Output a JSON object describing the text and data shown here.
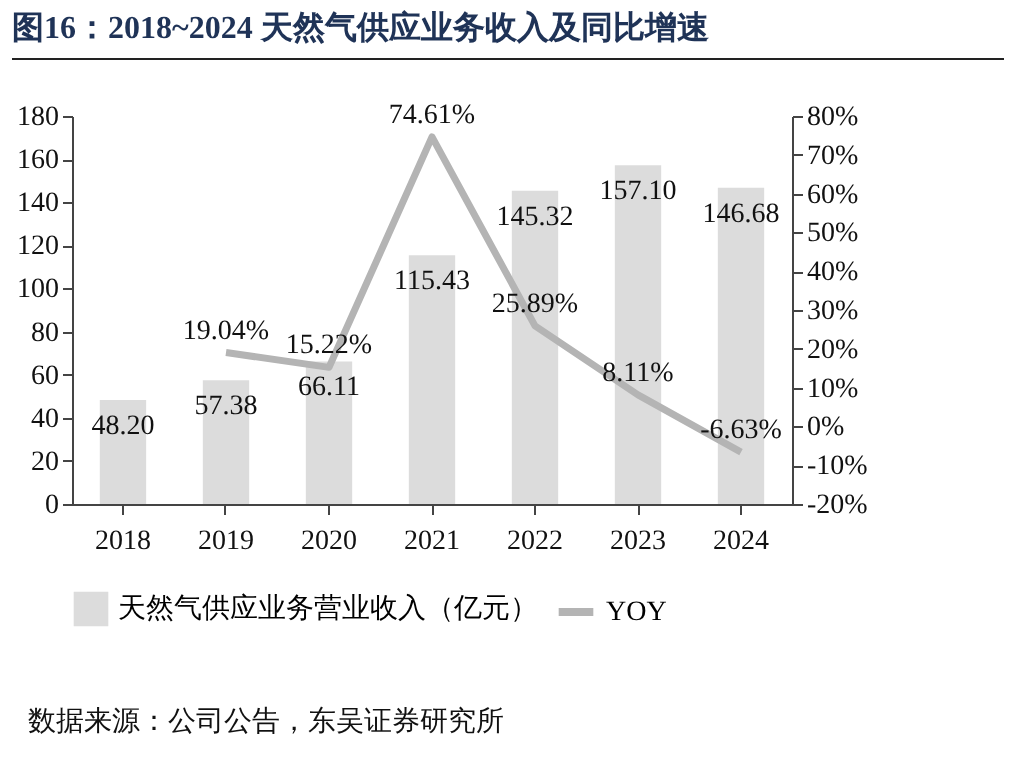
{
  "chart_data": {
    "type": "bar",
    "title": "图16：2018~2024 天然气供应业务收入及同比增速",
    "categories": [
      "2018",
      "2019",
      "2020",
      "2021",
      "2022",
      "2023",
      "2024"
    ],
    "series": [
      {
        "name": "天然气供应业务营业收入（亿元）",
        "color": "#dcdcdc",
        "values": [
          48.2,
          57.38,
          66.11,
          115.43,
          145.32,
          157.1,
          146.68
        ]
      },
      {
        "name": "YOY",
        "type": "line",
        "axis": "y2",
        "color": "#b4b4b4",
        "values": [
          null,
          19.04,
          15.22,
          74.61,
          25.89,
          8.11,
          -6.63
        ]
      }
    ],
    "value_labels": [
      [
        "48.20",
        "57.38",
        "66.11",
        "115.43",
        "145.32",
        "157.10",
        "146.68"
      ],
      [
        null,
        "19.04%",
        "15.22%",
        "74.61%",
        "25.89%",
        "8.11%",
        "-6.63%"
      ]
    ],
    "ylim": [
      0,
      180
    ],
    "yticks": [
      0,
      20,
      40,
      60,
      80,
      100,
      120,
      140,
      160,
      180
    ],
    "y2lim": [
      -20,
      80
    ],
    "y2ticks": [
      {
        "value": -20,
        "label": "-20%"
      },
      {
        "value": -10,
        "label": "-10%"
      },
      {
        "value": 0,
        "label": "0%"
      },
      {
        "value": 10,
        "label": "10%"
      },
      {
        "value": 20,
        "label": "20%"
      },
      {
        "value": 30,
        "label": "30%"
      },
      {
        "value": 40,
        "label": "40%"
      },
      {
        "value": 50,
        "label": "50%"
      },
      {
        "value": 60,
        "label": "60%"
      },
      {
        "value": 70,
        "label": "70%"
      },
      {
        "value": 80,
        "label": "80%"
      }
    ],
    "legend": "bottom",
    "grid": false,
    "marker": "none",
    "line_style": "solid",
    "annotations": [
      "数据来源：公司公告，东吴证券研究所"
    ]
  }
}
